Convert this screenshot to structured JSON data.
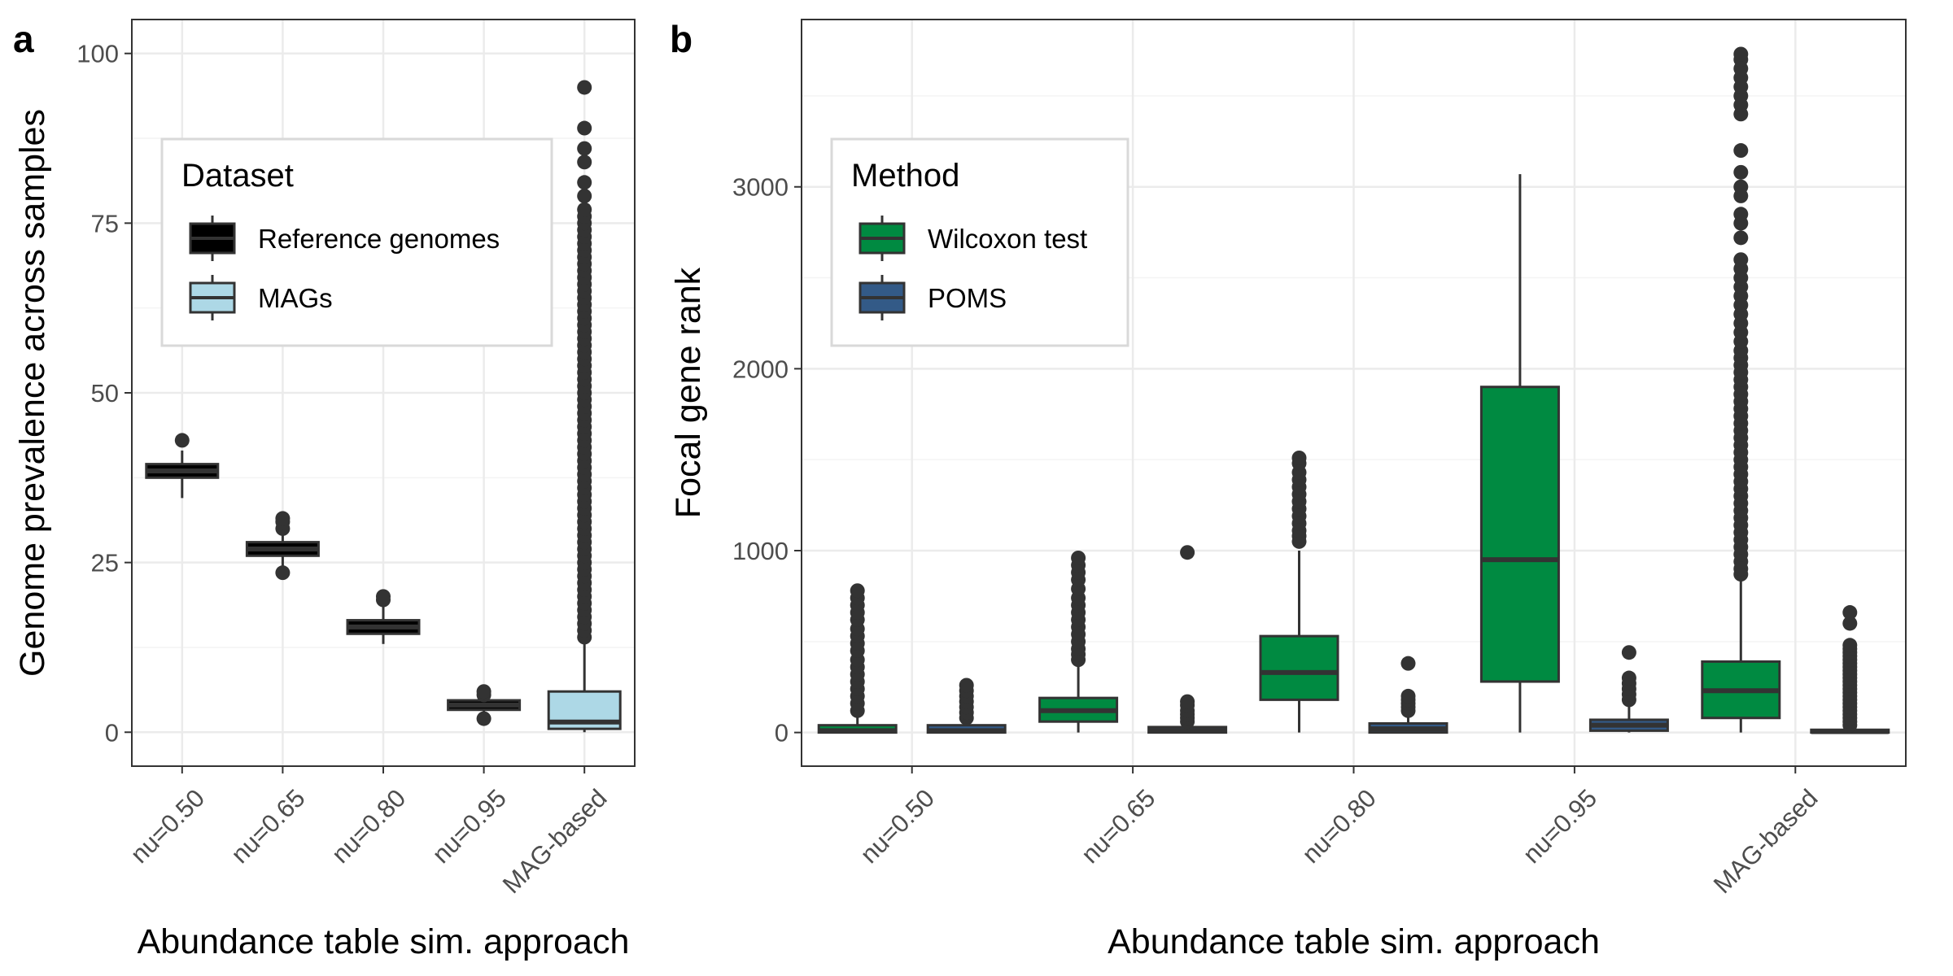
{
  "chart_data": [
    {
      "panel_label": "a",
      "type": "box",
      "xlabel": "Abundance table sim. approach",
      "ylabel": "Genome prevalence across samples",
      "categories": [
        "nu=0.50",
        "nu=0.65",
        "nu=0.80",
        "nu=0.95",
        "MAG-based"
      ],
      "yticks": [
        0,
        25,
        50,
        75,
        100
      ],
      "ylim": [
        -5,
        105
      ],
      "legend": {
        "title": "Dataset",
        "position": "top-left",
        "entries": [
          {
            "label": "Reference genomes",
            "color": "#000000"
          },
          {
            "label": "MAGs",
            "color": "#add8e6"
          }
        ]
      },
      "series": [
        {
          "name": "Reference genomes",
          "color": "#000000",
          "boxes": [
            {
              "category": "nu=0.50",
              "q1": 37.5,
              "median": 38.5,
              "q3": 39.5,
              "whisker_low": 34.5,
              "whisker_high": 41.5,
              "outliers": [
                43.0
              ]
            },
            {
              "category": "nu=0.65",
              "q1": 26.0,
              "median": 27.0,
              "q3": 28.0,
              "whisker_low": 24.5,
              "whisker_high": 29.5,
              "outliers": [
                23.5,
                30.0,
                31.0,
                31.5
              ]
            },
            {
              "category": "nu=0.80",
              "q1": 14.5,
              "median": 15.5,
              "q3": 16.5,
              "whisker_low": 13.0,
              "whisker_high": 18.5,
              "outliers": [
                19.5,
                20.0
              ]
            },
            {
              "category": "nu=0.95",
              "q1": 3.3,
              "median": 4.0,
              "q3": 4.7,
              "whisker_low": 3.0,
              "whisker_high": 5.0,
              "outliers": [
                2.0,
                5.5,
                6.0
              ]
            }
          ]
        },
        {
          "name": "MAGs",
          "color": "#add8e6",
          "boxes": [
            {
              "category": "MAG-based",
              "q1": 0.5,
              "median": 1.5,
              "q3": 6.0,
              "whisker_low": 0,
              "whisker_high": 13.0,
              "outliers": [
                14,
                15,
                16,
                17,
                18,
                19,
                20,
                21,
                22,
                23,
                24,
                25,
                26,
                27,
                28,
                29,
                30,
                31,
                32,
                33,
                34,
                35,
                36,
                37,
                38,
                39,
                40,
                41,
                42,
                43,
                44,
                45,
                46,
                47,
                48,
                49,
                50,
                51,
                52,
                53,
                54,
                55,
                56,
                57,
                58,
                59,
                60,
                61,
                62,
                63,
                64,
                65,
                66,
                67,
                68,
                69,
                70,
                71,
                72,
                73,
                74,
                75,
                76,
                77,
                79,
                81,
                84,
                86,
                89,
                95
              ]
            }
          ]
        }
      ]
    },
    {
      "panel_label": "b",
      "type": "box",
      "xlabel": "Abundance table sim. approach",
      "ylabel": "Focal gene rank",
      "categories": [
        "nu=0.50",
        "nu=0.65",
        "nu=0.80",
        "nu=0.95",
        "MAG-based"
      ],
      "yticks": [
        0,
        1000,
        2000,
        3000
      ],
      "ylim": [
        -185,
        3920
      ],
      "legend": {
        "title": "Method",
        "position": "top-left",
        "entries": [
          {
            "label": "Wilcoxon test",
            "color": "#008a41"
          },
          {
            "label": "POMS",
            "color": "#335a87"
          }
        ]
      },
      "series": [
        {
          "name": "Wilcoxon test",
          "color": "#008a41",
          "boxes": [
            {
              "category": "nu=0.50",
              "q1": 0,
              "median": 10,
              "q3": 40,
              "whisker_low": 0,
              "whisker_high": 90,
              "outliers": [
                120,
                160,
                200,
                240,
                280,
                320,
                360,
                400,
                450,
                490,
                530,
                570,
                620,
                660,
                700,
                740,
                780
              ]
            },
            {
              "category": "nu=0.65",
              "q1": 60,
              "median": 120,
              "q3": 190,
              "whisker_low": 0,
              "whisker_high": 380,
              "outliers": [
                400,
                430,
                460,
                500,
                540,
                580,
                620,
                660,
                700,
                740,
                790,
                840,
                880,
                920,
                960
              ]
            },
            {
              "category": "nu=0.80",
              "q1": 180,
              "median": 330,
              "q3": 530,
              "whisker_low": 0,
              "whisker_high": 1000,
              "outliers": [
                1050,
                1080,
                1110,
                1150,
                1190,
                1230,
                1270,
                1310,
                1350,
                1390,
                1430,
                1480,
                1510
              ]
            },
            {
              "category": "nu=0.95",
              "q1": 280,
              "median": 950,
              "q3": 1900,
              "whisker_low": 0,
              "whisker_high": 3070,
              "outliers": []
            },
            {
              "category": "MAG-based",
              "q1": 80,
              "median": 230,
              "q3": 390,
              "whisker_low": 0,
              "whisker_high": 850,
              "outliers": [
                870,
                900,
                940,
                980,
                1020,
                1060,
                1100,
                1140,
                1180,
                1220,
                1260,
                1300,
                1340,
                1380,
                1420,
                1460,
                1500,
                1540,
                1580,
                1620,
                1660,
                1700,
                1740,
                1780,
                1820,
                1860,
                1900,
                1940,
                1980,
                2020,
                2060,
                2100,
                2150,
                2200,
                2250,
                2300,
                2350,
                2400,
                2450,
                2500,
                2550,
                2600,
                2720,
                2800,
                2850,
                2950,
                3000,
                3080,
                3200,
                3400,
                3450,
                3500,
                3550,
                3600,
                3650,
                3700,
                3730
              ]
            }
          ]
        },
        {
          "name": "POMS",
          "color": "#335a87",
          "boxes": [
            {
              "category": "nu=0.50",
              "q1": 0,
              "median": 10,
              "q3": 40,
              "whisker_low": 0,
              "whisker_high": 60,
              "outliers": [
                80,
                110,
                140,
                170,
                200,
                230,
                260
              ]
            },
            {
              "category": "nu=0.65",
              "q1": 0,
              "median": 10,
              "q3": 30,
              "whisker_low": 0,
              "whisker_high": 40,
              "outliers": [
                60,
                80,
                100,
                120,
                150,
                170,
                990
              ]
            },
            {
              "category": "nu=0.80",
              "q1": 0,
              "median": 20,
              "q3": 50,
              "whisker_low": 0,
              "whisker_high": 100,
              "outliers": [
                120,
                140,
                160,
                180,
                200,
                380
              ]
            },
            {
              "category": "nu=0.95",
              "q1": 10,
              "median": 40,
              "q3": 70,
              "whisker_low": 0,
              "whisker_high": 150,
              "outliers": [
                180,
                210,
                240,
                270,
                300,
                440
              ]
            },
            {
              "category": "MAG-based",
              "q1": 0,
              "median": 5,
              "q3": 15,
              "whisker_low": 0,
              "whisker_high": 30,
              "outliers": [
                40,
                60,
                80,
                100,
                120,
                140,
                160,
                180,
                200,
                220,
                240,
                260,
                280,
                300,
                320,
                340,
                360,
                380,
                400,
                420,
                440,
                460,
                480,
                600,
                660
              ]
            }
          ]
        }
      ]
    }
  ]
}
